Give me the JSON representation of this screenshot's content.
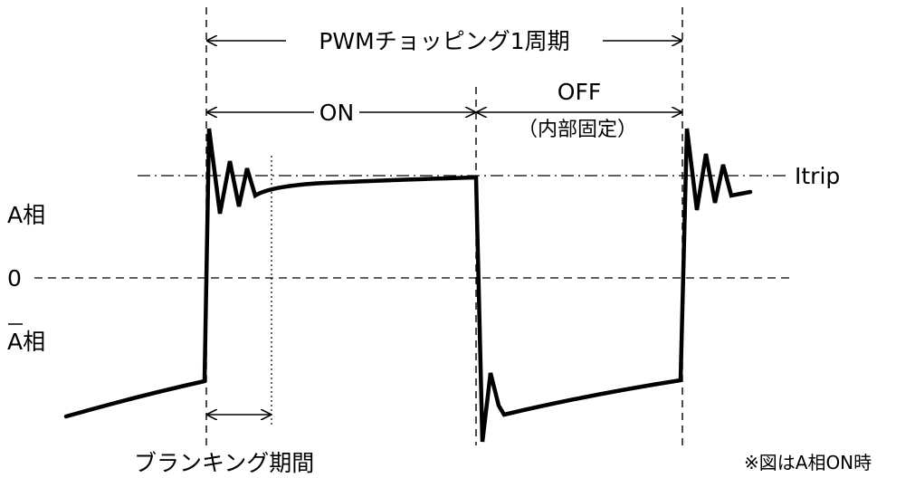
{
  "diagram": {
    "period_label": "PWMチョッピング1周期",
    "on_label": "ON",
    "off_label": "OFF",
    "off_sub_label": "（内部固定）",
    "itrip_label": "Itrip",
    "phase_a_label": "A相",
    "zero_label": "0",
    "phase_a_bar_label": "A相",
    "blanking_label": "ブランキング期間",
    "note_label": "※図はA相ON時"
  }
}
